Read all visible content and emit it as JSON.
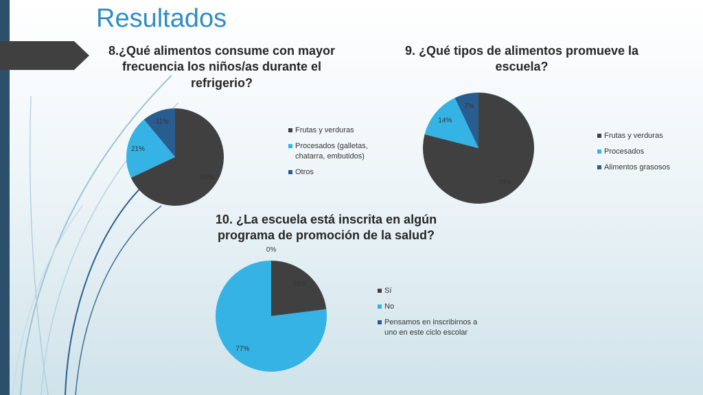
{
  "slide": {
    "title": "Resultados"
  },
  "colors": {
    "dark": "#404040",
    "light_blue": "#34b3e4",
    "navy": "#2a5d8f",
    "accent": "#2e8dc3"
  },
  "chart_data": [
    {
      "type": "pie",
      "title": "8.¿Qué alimentos consume con mayor frecuencia los niños/as durante el refrigerio?",
      "categories": [
        "Frutas y verduras",
        "Procesados (galletas, chatarra, embutidos)",
        "Otros"
      ],
      "values": [
        68,
        21,
        11
      ],
      "labels": [
        "68%",
        "21%",
        "11%"
      ],
      "colors": [
        "#404040",
        "#34b3e4",
        "#2a5d8f"
      ],
      "legend": "right"
    },
    {
      "type": "pie",
      "title": "9. ¿Qué tipos de alimentos promueve la escuela?",
      "categories": [
        "Frutas y verduras",
        "Procesados",
        "Alimentos grasosos"
      ],
      "values": [
        79,
        14,
        7
      ],
      "labels": [
        "79%",
        "14%",
        "7%"
      ],
      "colors": [
        "#404040",
        "#34b3e4",
        "#2a5d8f"
      ],
      "legend": "right"
    },
    {
      "type": "pie",
      "title": "10. ¿La escuela está inscrita en algún programa de promoción de la salud?",
      "categories": [
        "Sí",
        "No",
        "Pensamos en inscribirnos a uno en este ciclo escolar"
      ],
      "values": [
        23,
        77,
        0
      ],
      "labels": [
        "23%",
        "77%",
        "0%"
      ],
      "colors": [
        "#404040",
        "#34b3e4",
        "#2a5d8f"
      ],
      "legend": "right"
    }
  ]
}
